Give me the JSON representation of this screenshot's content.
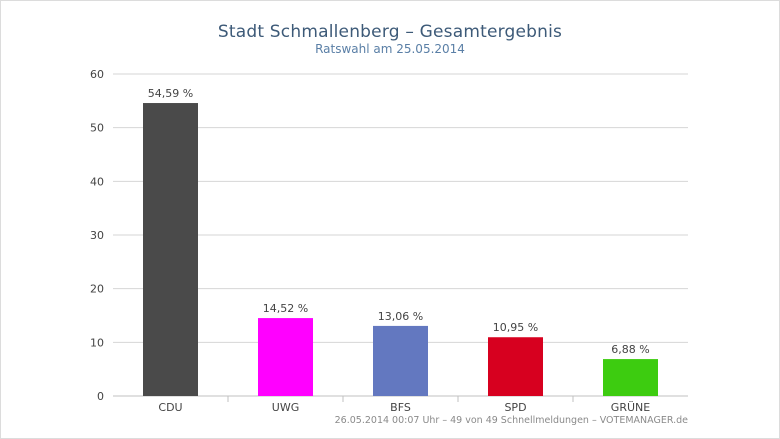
{
  "chart_data": {
    "type": "bar",
    "title": "Stadt Schmallenberg – Gesamtergebnis",
    "subtitle": "Ratswahl am 25.05.2014",
    "footer": "26.05.2014 00:07 Uhr – 49 von 49 Schnellmeldungen – VOTEMANAGER.de",
    "categories": [
      "CDU",
      "UWG",
      "BFS",
      "SPD",
      "GRÜNE"
    ],
    "values": [
      54.59,
      14.52,
      13.06,
      10.95,
      6.88
    ],
    "value_labels": [
      "54,59 %",
      "14,52 %",
      "13,06 %",
      "10,95 %",
      "6,88 %"
    ],
    "colors": [
      "#4a4a4a",
      "#ff00ff",
      "#6378c0",
      "#d7001f",
      "#3dcc10"
    ],
    "ylim": [
      0,
      60
    ],
    "yticks": [
      0,
      10,
      20,
      30,
      40,
      50,
      60
    ],
    "grid": true,
    "legend": "none"
  }
}
